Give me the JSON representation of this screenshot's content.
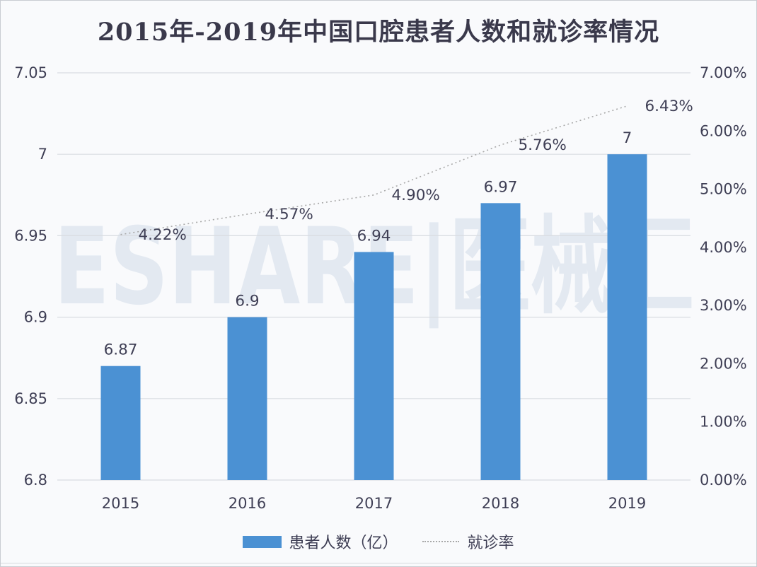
{
  "title": "2015年-2019年中国口腔患者人数和就诊率情况",
  "watermark": "ESHARE|医械汇",
  "colors": {
    "background": "#f9fafc",
    "bar": "#4b91d3",
    "line": "#a8a8a8",
    "grid": "#d9dce1",
    "text": "#3f3f55",
    "title": "#3a394b",
    "watermark": "#e3e9f1"
  },
  "legend": {
    "bar_label": "患者人数（亿）",
    "line_label": "就诊率"
  },
  "chart_data": {
    "type": "bar",
    "subtype": "bar+line combo",
    "title": "2015年-2019年中国口腔患者人数和就诊率情况",
    "categories": [
      "2015",
      "2016",
      "2017",
      "2018",
      "2019"
    ],
    "series": [
      {
        "name": "患者人数（亿）",
        "type": "bar",
        "axis": "left",
        "values": [
          6.87,
          6.9,
          6.94,
          6.97,
          7
        ],
        "labels": [
          "6.87",
          "6.9",
          "6.94",
          "6.97",
          "7"
        ]
      },
      {
        "name": "就诊率",
        "type": "line",
        "style": "dotted",
        "axis": "right",
        "values": [
          4.22,
          4.57,
          4.9,
          5.76,
          6.43
        ],
        "labels": [
          "4.22%",
          "4.57%",
          "4.90%",
          "5.76%",
          "6.43%"
        ]
      }
    ],
    "left_axis": {
      "min": 6.8,
      "max": 7.05,
      "step": 0.05,
      "ticks": [
        "7.05",
        "7",
        "6.95",
        "6.9",
        "6.85",
        "6.8"
      ]
    },
    "right_axis": {
      "min": 0,
      "max": 7,
      "step": 1,
      "ticks": [
        "7.00%",
        "6.00%",
        "5.00%",
        "4.00%",
        "3.00%",
        "2.00%",
        "1.00%",
        "0.00%"
      ]
    },
    "grid": true,
    "legend_position": "bottom"
  }
}
